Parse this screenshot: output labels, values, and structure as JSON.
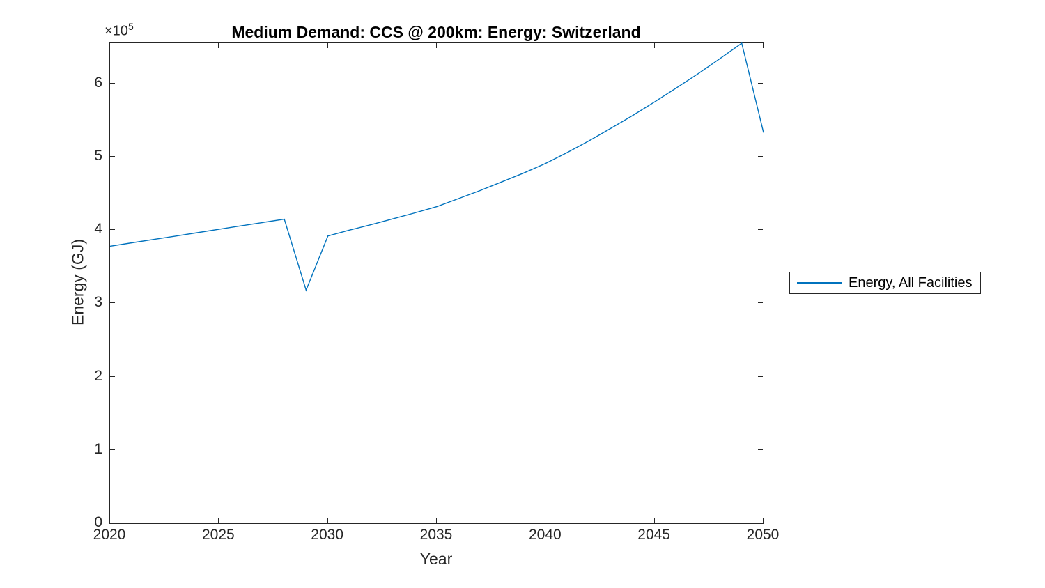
{
  "title": "Medium Demand: CCS @ 200km: Energy: Switzerland",
  "axes": {
    "x": {
      "label": "Year",
      "tick_labels": [
        "2020",
        "2025",
        "2030",
        "2035",
        "2040",
        "2045",
        "2050"
      ]
    },
    "y": {
      "label": "Energy (GJ)",
      "tick_labels": [
        "0",
        "1",
        "2",
        "3",
        "4",
        "5",
        "6"
      ],
      "multiplier_base": "×10",
      "multiplier_exp": "5"
    }
  },
  "legend": {
    "items": [
      {
        "label": "Energy, All Facilities",
        "color": "#0072BD"
      }
    ]
  },
  "colors": {
    "line": "#0072BD",
    "axis": "#262626",
    "background": "#ffffff"
  },
  "chart_data": {
    "type": "line",
    "title": "Medium Demand: CCS @ 200km: Energy: Switzerland",
    "xlabel": "Year",
    "ylabel": "Energy (GJ)",
    "xlim": [
      2020,
      2050
    ],
    "ylim": [
      0,
      655000
    ],
    "x_ticks": [
      2020,
      2025,
      2030,
      2035,
      2040,
      2045,
      2050
    ],
    "y_ticks": [
      0,
      100000,
      200000,
      300000,
      400000,
      500000,
      600000
    ],
    "y_multiplier": "×10^5",
    "grid": false,
    "legend_position": "right-outside",
    "series": [
      {
        "name": "Energy, All Facilities",
        "color": "#0072BD",
        "x": [
          2020,
          2021,
          2022,
          2023,
          2024,
          2025,
          2026,
          2027,
          2028,
          2029,
          2030,
          2031,
          2032,
          2033,
          2034,
          2035,
          2036,
          2037,
          2038,
          2039,
          2040,
          2041,
          2042,
          2043,
          2044,
          2045,
          2046,
          2047,
          2048,
          2049,
          2050
        ],
        "y": [
          378000,
          382600,
          387200,
          391800,
          396400,
          401100,
          405700,
          410300,
          415000,
          318000,
          392000,
          400000,
          407500,
          415500,
          423500,
          432000,
          443000,
          454000,
          466000,
          478000,
          491000,
          506000,
          522000,
          539000,
          556500,
          575000,
          594000,
          613500,
          634000,
          655000,
          533000
        ]
      }
    ]
  }
}
